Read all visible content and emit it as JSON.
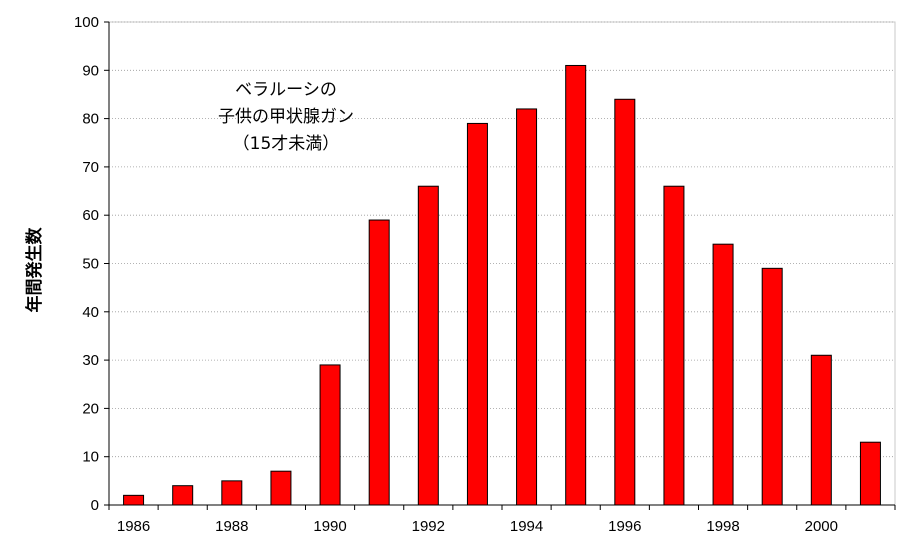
{
  "chart_data": {
    "type": "bar",
    "categories": [
      "1986",
      "1987",
      "1988",
      "1989",
      "1990",
      "1991",
      "1992",
      "1993",
      "1994",
      "1995",
      "1996",
      "1997",
      "1998",
      "1999",
      "2000",
      "2001"
    ],
    "values": [
      2,
      4,
      5,
      7,
      29,
      59,
      66,
      79,
      82,
      91,
      84,
      66,
      54,
      49,
      31,
      13
    ],
    "x_tick_labels": [
      "1986",
      "1988",
      "1990",
      "1992",
      "1994",
      "1996",
      "1998",
      "2000"
    ],
    "ylabel": "年間発生数",
    "xlabel": "",
    "ylim": [
      0,
      100
    ],
    "y_ticks": [
      0,
      10,
      20,
      30,
      40,
      50,
      60,
      70,
      80,
      90,
      100
    ],
    "annotation": [
      "ベラルーシの",
      "子供の甲状腺ガン",
      "（15才未満）"
    ],
    "bar_color": "#ff0000",
    "bar_edge_color": "#000000",
    "grid": true,
    "grid_style": "dotted",
    "legend": "none"
  }
}
